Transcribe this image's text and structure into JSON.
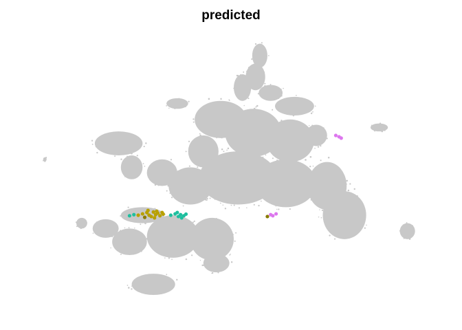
{
  "chart_data": {
    "type": "scatter",
    "title": "predicted",
    "xlabel": "",
    "ylabel": "",
    "axes_visible": false,
    "grid": false,
    "legend": "none",
    "background_color": "#c8c8c8",
    "series": [
      {
        "color": "#b8a000",
        "points": [
          [
            -4.2,
            -1.35
          ],
          [
            -4.0,
            -1.3
          ],
          [
            -3.9,
            -1.4
          ],
          [
            -3.7,
            -1.28
          ],
          [
            -3.6,
            -1.38
          ],
          [
            -3.5,
            -1.32
          ],
          [
            -3.4,
            -1.42
          ],
          [
            -3.3,
            -1.3
          ],
          [
            -3.8,
            -1.45
          ],
          [
            -4.4,
            -1.4
          ],
          [
            -3.55,
            -1.25
          ],
          [
            -3.25,
            -1.36
          ],
          [
            -3.95,
            -1.22
          ],
          [
            -3.65,
            -1.5
          ]
        ]
      },
      {
        "color": "#1fbf9f",
        "points": [
          [
            -4.8,
            -1.42
          ],
          [
            -4.6,
            -1.38
          ],
          [
            -2.9,
            -1.4
          ],
          [
            -2.7,
            -1.35
          ],
          [
            -2.55,
            -1.45
          ],
          [
            -2.45,
            -1.38
          ],
          [
            -2.3,
            -1.42
          ],
          [
            -2.6,
            -1.3
          ],
          [
            -2.4,
            -1.5
          ],
          [
            -2.2,
            -1.36
          ]
        ]
      },
      {
        "color": "#dd77ee",
        "points": [
          [
            1.7,
            -1.38
          ],
          [
            1.8,
            -1.42
          ],
          [
            1.95,
            -1.35
          ],
          [
            4.7,
            1.6
          ],
          [
            4.85,
            1.55
          ],
          [
            4.95,
            1.5
          ]
        ]
      },
      {
        "color": "#8a7a00",
        "points": [
          [
            1.55,
            -1.45
          ],
          [
            -4.1,
            -1.48
          ]
        ]
      }
    ],
    "background_blobs": [
      {
        "cx": 1.2,
        "cy": 4.6,
        "rx": 0.35,
        "ry": 0.45
      },
      {
        "cx": 1.0,
        "cy": 3.8,
        "rx": 0.45,
        "ry": 0.5
      },
      {
        "cx": 0.4,
        "cy": 3.4,
        "rx": 0.4,
        "ry": 0.5
      },
      {
        "cx": 1.7,
        "cy": 3.2,
        "rx": 0.55,
        "ry": 0.3
      },
      {
        "cx": 2.8,
        "cy": 2.7,
        "rx": 0.9,
        "ry": 0.35
      },
      {
        "cx": -2.6,
        "cy": 2.8,
        "rx": 0.5,
        "ry": 0.2
      },
      {
        "cx": -0.6,
        "cy": 2.2,
        "rx": 1.2,
        "ry": 0.7
      },
      {
        "cx": 0.9,
        "cy": 1.7,
        "rx": 1.3,
        "ry": 0.9
      },
      {
        "cx": 2.6,
        "cy": 1.4,
        "rx": 1.1,
        "ry": 0.8
      },
      {
        "cx": 3.8,
        "cy": 1.6,
        "rx": 0.5,
        "ry": 0.4
      },
      {
        "cx": -1.4,
        "cy": 1.0,
        "rx": 0.7,
        "ry": 0.6
      },
      {
        "cx": -5.3,
        "cy": 1.3,
        "rx": 1.1,
        "ry": 0.45
      },
      {
        "cx": -4.7,
        "cy": 0.4,
        "rx": 0.5,
        "ry": 0.45
      },
      {
        "cx": -3.3,
        "cy": 0.2,
        "rx": 0.7,
        "ry": 0.5
      },
      {
        "cx": -2.0,
        "cy": -0.3,
        "rx": 1.0,
        "ry": 0.7
      },
      {
        "cx": 0.2,
        "cy": 0.0,
        "rx": 1.8,
        "ry": 1.0
      },
      {
        "cx": 2.4,
        "cy": -0.2,
        "rx": 1.4,
        "ry": 0.9
      },
      {
        "cx": 4.3,
        "cy": -0.3,
        "rx": 0.9,
        "ry": 0.9
      },
      {
        "cx": 5.1,
        "cy": -1.4,
        "rx": 1.0,
        "ry": 0.9
      },
      {
        "cx": -4.2,
        "cy": -1.4,
        "rx": 1.0,
        "ry": 0.3
      },
      {
        "cx": -5.9,
        "cy": -1.9,
        "rx": 0.6,
        "ry": 0.35
      },
      {
        "cx": -7.0,
        "cy": -1.7,
        "rx": 0.25,
        "ry": 0.2
      },
      {
        "cx": -4.8,
        "cy": -2.4,
        "rx": 0.8,
        "ry": 0.5
      },
      {
        "cx": -2.8,
        "cy": -2.2,
        "rx": 1.2,
        "ry": 0.8
      },
      {
        "cx": -1.0,
        "cy": -2.3,
        "rx": 1.0,
        "ry": 0.8
      },
      {
        "cx": -0.8,
        "cy": -3.2,
        "rx": 0.6,
        "ry": 0.35
      },
      {
        "cx": -3.7,
        "cy": -4.0,
        "rx": 1.0,
        "ry": 0.4
      },
      {
        "cx": 6.7,
        "cy": 1.9,
        "rx": 0.4,
        "ry": 0.15
      },
      {
        "cx": 8.0,
        "cy": -2.0,
        "rx": 0.35,
        "ry": 0.3
      },
      {
        "cx": -8.7,
        "cy": 0.7,
        "rx": 0.08,
        "ry": 0.08
      }
    ],
    "xlim": [
      -9.5,
      9.5
    ],
    "ylim": [
      -5.2,
      5.4
    ]
  }
}
